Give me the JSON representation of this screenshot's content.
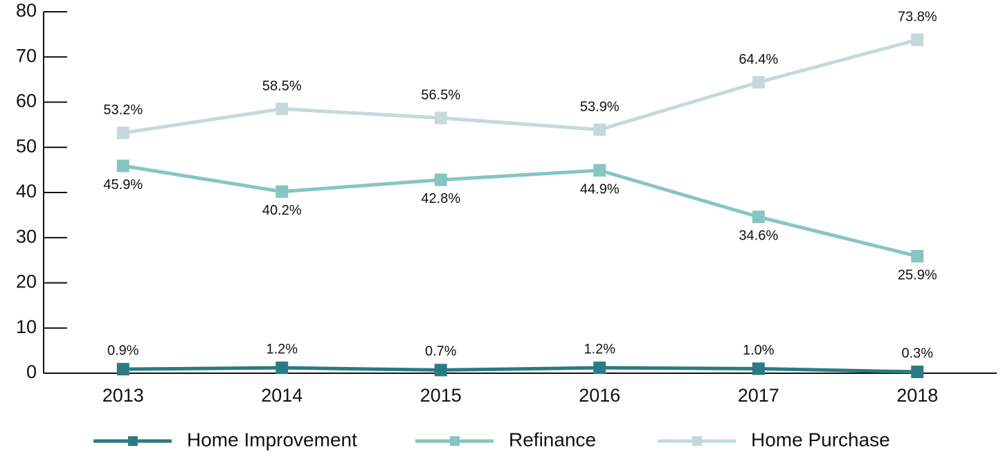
{
  "chart_data": {
    "type": "line",
    "categories": [
      "2013",
      "2014",
      "2015",
      "2016",
      "2017",
      "2018"
    ],
    "series": [
      {
        "name": "Home Improvement",
        "color": "#2a7b82",
        "values": [
          0.9,
          1.2,
          0.7,
          1.2,
          1.0,
          0.3
        ],
        "value_labels": [
          "0.9%",
          "1.2%",
          "0.7%",
          "1.2%",
          "1.0%",
          "0.3%"
        ]
      },
      {
        "name": "Refinance",
        "color": "#86c5c2",
        "values": [
          45.9,
          40.2,
          42.8,
          44.9,
          34.6,
          25.9
        ],
        "value_labels": [
          "45.9%",
          "40.2%",
          "42.8%",
          "44.9%",
          "34.6%",
          "25.9%"
        ]
      },
      {
        "name": "Home Purchase",
        "color": "#c5d9dc",
        "values": [
          53.2,
          58.5,
          56.5,
          53.9,
          64.4,
          73.8
        ],
        "value_labels": [
          "53.2%",
          "58.5%",
          "56.5%",
          "53.9%",
          "64.4%",
          "73.8%"
        ]
      }
    ],
    "ylim": [
      0,
      80
    ],
    "yticks": [
      0,
      10,
      20,
      30,
      40,
      50,
      60,
      70,
      80
    ],
    "legend": "bottom"
  }
}
